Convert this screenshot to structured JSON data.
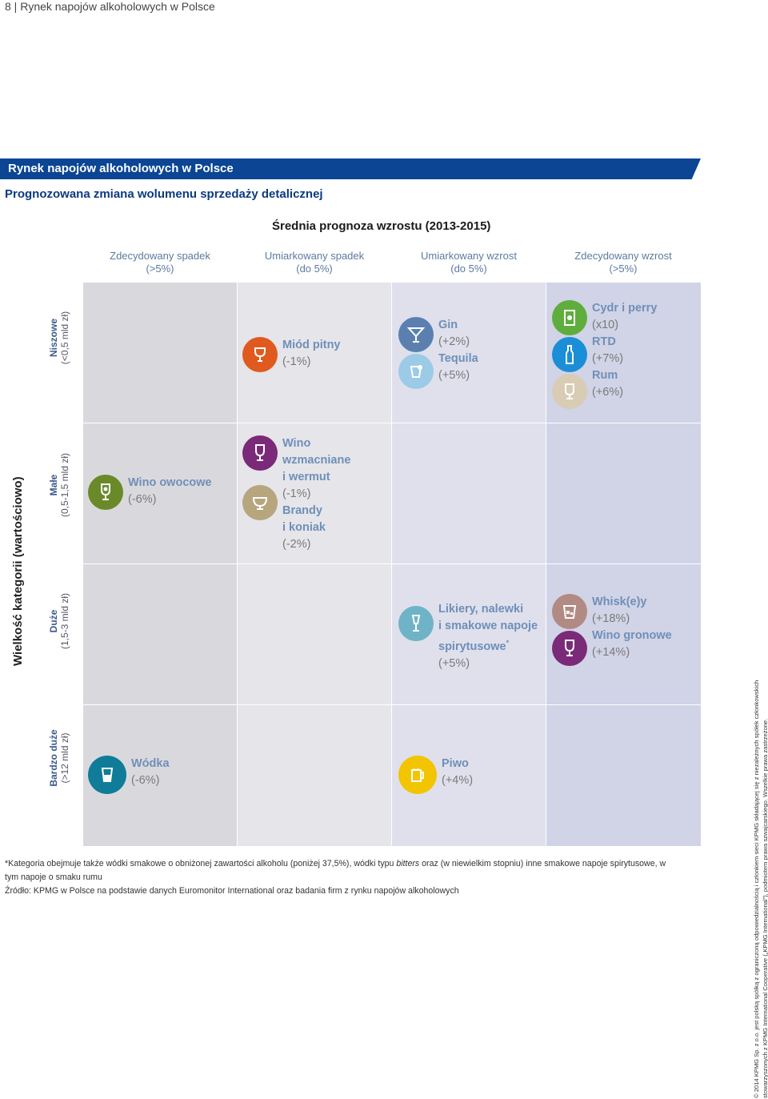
{
  "page_header": "8 | Rynek napojów alkoholowych w Polsce",
  "banner_title": "Rynek napojów alkoholowych w Polsce",
  "subtitle": "Prognozowana zmiana wolumenu sprzedaży detalicznej",
  "chart_title": "Średnia prognoza wzrostu (2013-2015)",
  "columns": [
    {
      "line1": "Zdecydowany spadek",
      "line2": "(>5%)"
    },
    {
      "line1": "Umiarkowany spadek",
      "line2": "(do 5%)"
    },
    {
      "line1": "Umiarkowany wzrost",
      "line2": "(do 5%)"
    },
    {
      "line1": "Zdecydowany wzrost",
      "line2": "(>5%)"
    }
  ],
  "y_axis_label": "Wielkość kategorii (wartościowo)",
  "rows": [
    {
      "line1": "Niszowe",
      "line2": "(<0,5 mld zł)"
    },
    {
      "line1": "Małe",
      "line2": "(0,5-1,5 mld zł)"
    },
    {
      "line1": "Duże",
      "line2": "(1,5-3 mld zł)"
    },
    {
      "line1": "Bardzo duże",
      "line2": "(>12 mld zł)"
    }
  ],
  "items": {
    "miod": {
      "name": "Miód pitny",
      "value": "(-1%)"
    },
    "gin": {
      "name": "Gin",
      "value": "(+2%)"
    },
    "tequila": {
      "name": "Tequila",
      "value": "(+5%)"
    },
    "cydr": {
      "name": "Cydr i perry",
      "value": "(x10)"
    },
    "rtd": {
      "name": "RTD",
      "value": "(+7%)"
    },
    "rum": {
      "name": "Rum",
      "value": "(+6%)"
    },
    "wino_owocowe": {
      "name": "Wino owocowe",
      "value": "(-6%)"
    },
    "wino_wzm_1": "Wino",
    "wino_wzm_2": "wzmacniane",
    "wino_wzm_3": "i wermut",
    "wino_wzm_value": "(-1%)",
    "brandy_1": "Brandy",
    "brandy_2": "i koniak",
    "brandy_value": "(-2%)",
    "likiery_1": "Likiery, nalewki",
    "likiery_2": "i smakowe napoje",
    "likiery_3": "spirytusowe",
    "likiery_mark": "*",
    "likiery_value": "(+5%)",
    "whisky": {
      "name": "Whisk(e)y",
      "value": "(+18%)"
    },
    "wino_gronowe": {
      "name": "Wino gronowe",
      "value": "(+14%)"
    },
    "wodka": {
      "name": "Wódka",
      "value": "(-6%)"
    },
    "piwo": {
      "name": "Piwo",
      "value": "(+4%)"
    }
  },
  "footnote_1_a": "*Kategoria obejmuje także wódki smakowe o obniżonej zawartości alkoholu (poniżej 37,5%), wódki typu ",
  "footnote_1_italic": "bitters",
  "footnote_1_b": " oraz (w niewielkim stopniu) inne smakowe napoje spirytusowe, w tym napoje o smaku rumu",
  "footnote_2": "Źródło: KPMG w Polsce na podstawie danych Euromonitor International oraz badania firm z rynku napojów alkoholowych",
  "side_note": "© 2014 KPMG Sp. z o.o. jest polską spółką z ograniczoną odpowiedzialnością i członkiem sieci KPMG składającej się z niezależnych spółek członkowskich stowarzyszonych z KPMG International Cooperative („KPMG International”), podmiotem prawa szwajcarskiego. Wszelkie prawa zastrzeżone.",
  "colors": {
    "banner": "#0b4594",
    "col1": "#d9d9dd",
    "col2": "#e5e5ea",
    "col3": "#dfe0ec",
    "col4": "#d1d3e6",
    "orange": "#e05a1f",
    "steel": "#5b80b0",
    "lightblue": "#9ccbe8",
    "green": "#5fae3d",
    "blue": "#1a8fd8",
    "beige": "#d8ccb4",
    "olive": "#6a8a2a",
    "purple": "#7a2a78",
    "khaki": "#b7a57d",
    "teal": "#6fb3c6",
    "rose": "#b28a84",
    "petrol": "#0f7c99",
    "yellow": "#f2c500"
  }
}
